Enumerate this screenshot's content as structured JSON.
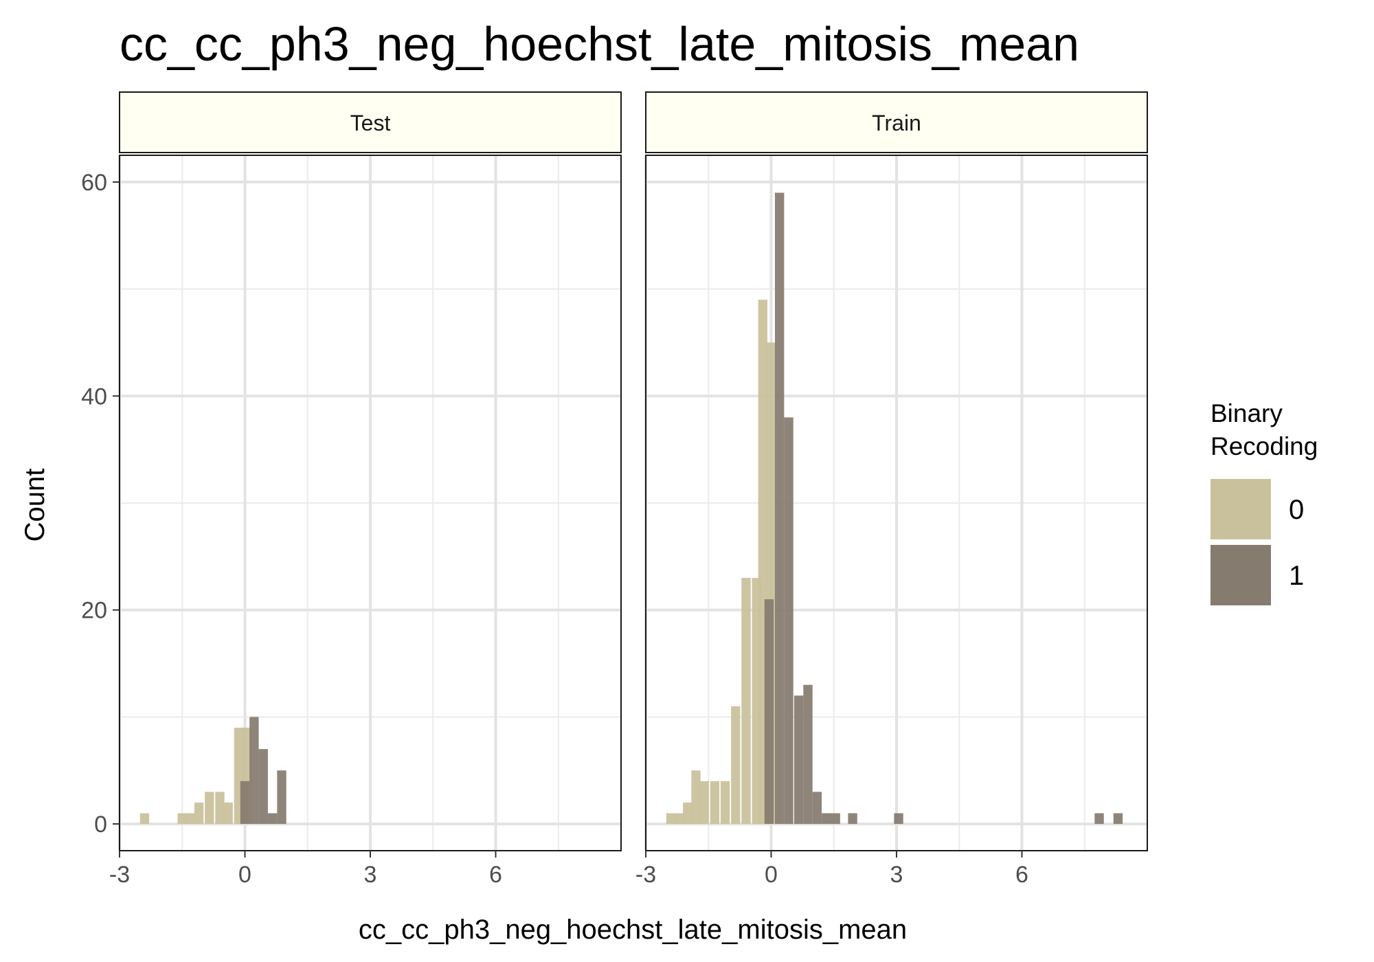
{
  "chart_data": {
    "type": "histogram",
    "title": "cc_cc_ph3_neg_hoechst_late_mitosis_mean",
    "xlabel": "cc_cc_ph3_neg_hoechst_late_mitosis_mean",
    "ylabel": "Count",
    "xlim": [
      -3,
      9
    ],
    "ylim": [
      -2.5,
      62.5
    ],
    "x_ticks": [
      -3,
      0,
      3,
      6
    ],
    "x_tick_labels": [
      "-3",
      "0",
      "3",
      "6"
    ],
    "y_ticks": [
      0,
      20,
      40,
      60
    ],
    "y_tick_labels": [
      "0",
      "20",
      "40",
      "60"
    ],
    "grid": true,
    "bin_width": 0.22,
    "legend": {
      "title_lines": [
        "Binary",
        "Recoding"
      ],
      "position": "right",
      "entries": [
        {
          "label": "0",
          "color": "#c9c19b"
        },
        {
          "label": "1",
          "color": "#857b6f"
        }
      ]
    },
    "panels": [
      {
        "label": "Test",
        "series": [
          {
            "name": "0",
            "color": "#c9c19b",
            "bins": [
              {
                "x": -2.4,
                "count": 1
              },
              {
                "x": -1.5,
                "count": 1
              },
              {
                "x": -1.3,
                "count": 1
              },
              {
                "x": -1.1,
                "count": 2
              },
              {
                "x": -0.85,
                "count": 3
              },
              {
                "x": -0.6,
                "count": 3
              },
              {
                "x": -0.4,
                "count": 2
              },
              {
                "x": -0.15,
                "count": 9
              },
              {
                "x": 0.05,
                "count": 9
              }
            ]
          },
          {
            "name": "1",
            "color": "#857b6f",
            "bins": [
              {
                "x": 0.0,
                "count": 4
              },
              {
                "x": 0.22,
                "count": 10
              },
              {
                "x": 0.44,
                "count": 7
              },
              {
                "x": 0.66,
                "count": 1
              },
              {
                "x": 0.88,
                "count": 5
              }
            ]
          }
        ]
      },
      {
        "label": "Train",
        "series": [
          {
            "name": "0",
            "color": "#c9c19b",
            "bins": [
              {
                "x": -2.4,
                "count": 1
              },
              {
                "x": -2.2,
                "count": 1
              },
              {
                "x": -2.0,
                "count": 2
              },
              {
                "x": -1.8,
                "count": 5
              },
              {
                "x": -1.6,
                "count": 4
              },
              {
                "x": -1.35,
                "count": 4
              },
              {
                "x": -1.1,
                "count": 4
              },
              {
                "x": -0.85,
                "count": 11
              },
              {
                "x": -0.6,
                "count": 23
              },
              {
                "x": -0.35,
                "count": 23
              },
              {
                "x": -0.2,
                "count": 49
              },
              {
                "x": 0.0,
                "count": 45
              }
            ]
          },
          {
            "name": "1",
            "color": "#857b6f",
            "bins": [
              {
                "x": -0.05,
                "count": 21
              },
              {
                "x": 0.2,
                "count": 59
              },
              {
                "x": 0.42,
                "count": 38
              },
              {
                "x": 0.66,
                "count": 12
              },
              {
                "x": 0.88,
                "count": 13
              },
              {
                "x": 1.1,
                "count": 3
              },
              {
                "x": 1.32,
                "count": 1
              },
              {
                "x": 1.54,
                "count": 1
              },
              {
                "x": 1.95,
                "count": 1
              },
              {
                "x": 3.05,
                "count": 1
              },
              {
                "x": 7.85,
                "count": 1
              },
              {
                "x": 8.3,
                "count": 1
              }
            ]
          }
        ]
      }
    ]
  }
}
